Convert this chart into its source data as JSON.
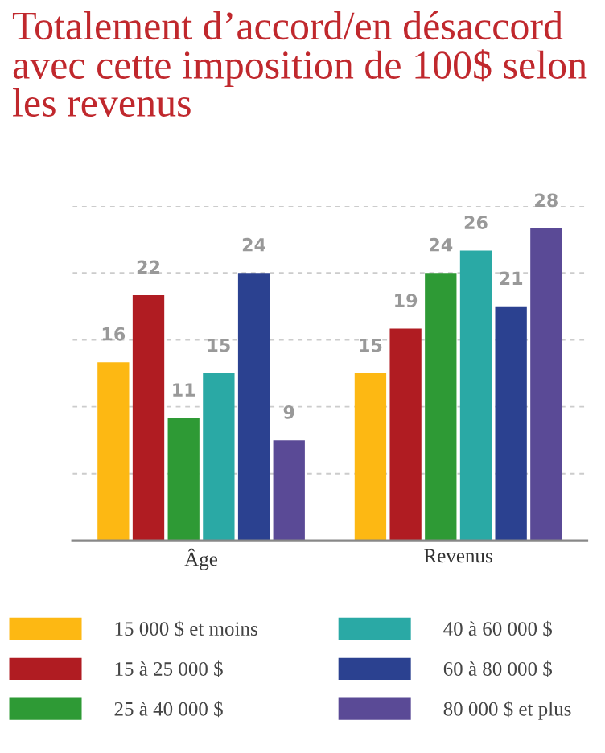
{
  "chart_data": {
    "type": "bar",
    "title": "Totalement d’accord/en désaccord avec cette imposition de 100$ selon les revenus",
    "categories": [
      "Âge",
      "Revenus"
    ],
    "series": [
      {
        "name": "15 000 $ et moins",
        "color": "#fdb813",
        "values": [
          16,
          15
        ]
      },
      {
        "name": "15 à 25 000 $",
        "color": "#b01c22",
        "values": [
          22,
          19
        ]
      },
      {
        "name": "25 à 40 000 $",
        "color": "#2e9a35",
        "values": [
          11,
          24
        ]
      },
      {
        "name": "40 à 60 000 $",
        "color": "#2aa9a5",
        "values": [
          15,
          26
        ]
      },
      {
        "name": "60 à 80 000 $",
        "color": "#2b4190",
        "values": [
          24,
          21
        ]
      },
      {
        "name": "80 000 $ et plus",
        "color": "#5a4a96",
        "values": [
          9,
          28
        ]
      }
    ],
    "ylim": [
      0,
      30
    ],
    "yticks": [
      {
        "value": 0,
        "label": null
      },
      {
        "value": 6,
        "label": null
      },
      {
        "value": 12,
        "label": null
      },
      {
        "value": 18,
        "label": null
      },
      {
        "value": 24,
        "label": null
      },
      {
        "value": 30,
        "label": null
      }
    ],
    "tick_labels": "x",
    "grid": "y",
    "data_labels": true,
    "legend": "bottom"
  }
}
